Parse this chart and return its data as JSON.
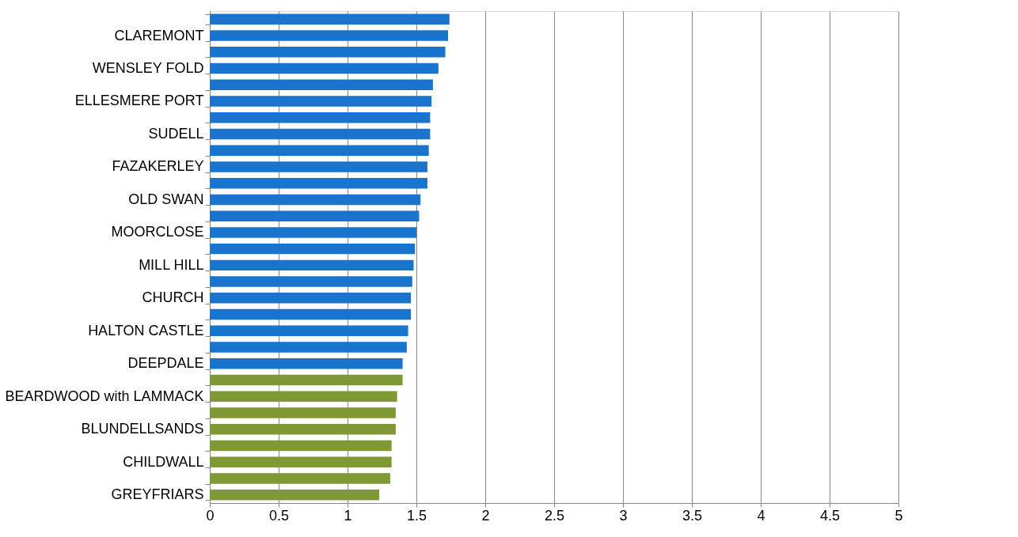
{
  "chart_data": {
    "type": "bar",
    "orientation": "horizontal",
    "categories": [
      null,
      "CLAREMONT",
      null,
      "WENSLEY FOLD",
      null,
      "ELLESMERE PORT",
      null,
      "SUDELL",
      null,
      "FAZAKERLEY",
      null,
      "OLD SWAN",
      null,
      "MOORCLOSE",
      null,
      "MILL HILL",
      null,
      "CHURCH",
      null,
      "HALTON CASTLE",
      null,
      "DEEPDALE",
      null,
      "BEARDWOOD with LAMMACK",
      null,
      "BLUNDELLSANDS",
      null,
      "CHILDWALL",
      null,
      "GREYFRIARS"
    ],
    "values": [
      1.74,
      1.73,
      1.71,
      1.66,
      1.62,
      1.61,
      1.6,
      1.6,
      1.59,
      1.58,
      1.58,
      1.53,
      1.52,
      1.5,
      1.49,
      1.48,
      1.47,
      1.46,
      1.46,
      1.44,
      1.43,
      1.4,
      1.4,
      1.36,
      1.35,
      1.35,
      1.32,
      1.32,
      1.31,
      1.23
    ],
    "colors": [
      "#1874cd",
      "#1874cd",
      "#1874cd",
      "#1874cd",
      "#1874cd",
      "#1874cd",
      "#1874cd",
      "#1874cd",
      "#1874cd",
      "#1874cd",
      "#1874cd",
      "#1874cd",
      "#1874cd",
      "#1874cd",
      "#1874cd",
      "#1874cd",
      "#1874cd",
      "#1874cd",
      "#1874cd",
      "#1874cd",
      "#1874cd",
      "#1874cd",
      "#7f9a35",
      "#7f9a35",
      "#7f9a35",
      "#7f9a35",
      "#7f9a35",
      "#7f9a35",
      "#7f9a35",
      "#7f9a35"
    ],
    "xlim": [
      0,
      5
    ],
    "xticks": [
      0,
      0.5,
      1,
      1.5,
      2,
      2.5,
      3,
      3.5,
      4,
      4.5,
      5
    ],
    "grid": "x"
  }
}
